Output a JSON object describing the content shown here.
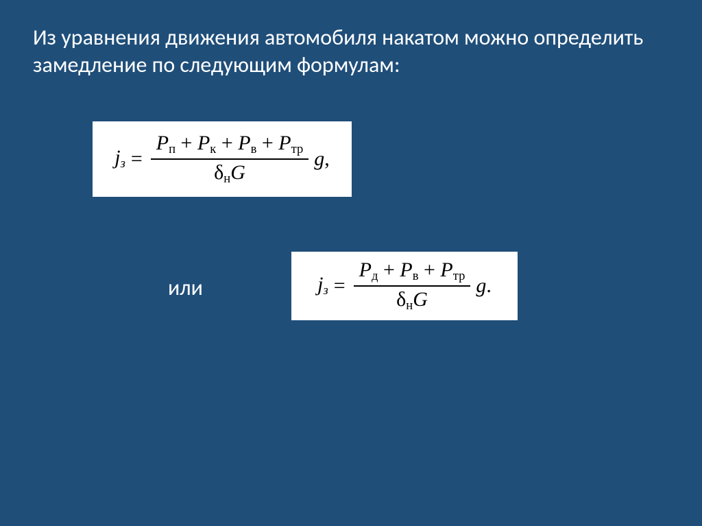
{
  "background_color": "#1f4e79",
  "text_color": "#ffffff",
  "formula_bg": "#ffffff",
  "formula_fg": "#000000",
  "title": "Из уравнения движения автомобиля накатом можно определить замедление по следующим формулам:",
  "connector": "или",
  "formula1": {
    "lhs_var": "j",
    "lhs_sub": "з",
    "equals": "=",
    "num_plain": "Pп + Pк + Pв + Pтр",
    "den_delta": "δ",
    "den_delta_sub": "н",
    "den_G": "G",
    "trail_g": "g",
    "trail_punct": ",",
    "p": "P",
    "plus": " + ",
    "s1": "п",
    "s2": "к",
    "s3": "в",
    "s4": "тр"
  },
  "formula2": {
    "lhs_var": "j",
    "lhs_sub": "з",
    "equals": "=",
    "num_plain": "Pд + Pв + Pтр",
    "den_delta": "δ",
    "den_delta_sub": "н",
    "den_G": "G",
    "trail_g": "g",
    "trail_punct": ".",
    "p": "P",
    "plus": " + ",
    "s1": "д",
    "s2": "в",
    "s3": "тр"
  }
}
